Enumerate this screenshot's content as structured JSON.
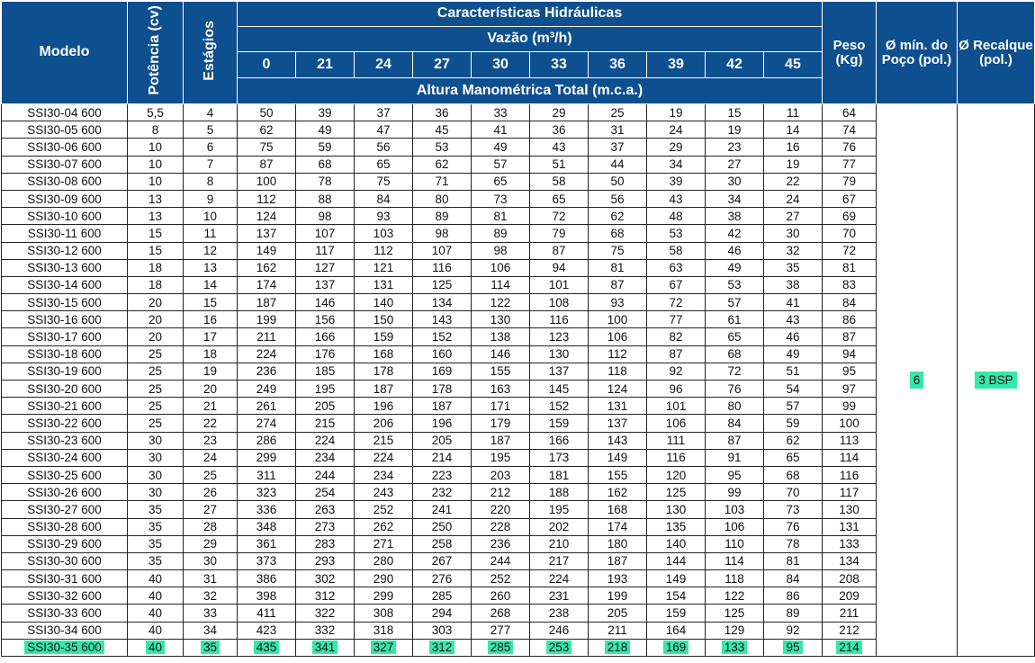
{
  "header": {
    "model": "Modelo",
    "power": "Potência (cv)",
    "stages": "Estágios",
    "hydraulic": "Características Hidráulicas",
    "flow": "Vazão (m³/h)",
    "head": "Altura Manométrica Total (m.c.a.)",
    "weight": "Peso (Kg)",
    "well": "Ø mín. do Poço (pol.)",
    "discharge": "Ø Recalque (pol.)",
    "flows": [
      "0",
      "21",
      "24",
      "27",
      "30",
      "33",
      "36",
      "39",
      "42",
      "45"
    ]
  },
  "merged": {
    "well_value": "6",
    "discharge_value": "3 BSP"
  },
  "colors": {
    "header_bg": "#0e4f8f",
    "highlight": "#35e8a8"
  },
  "rows": [
    [
      "SSI30-04 600",
      "5,5",
      "4",
      "50",
      "39",
      "37",
      "36",
      "33",
      "29",
      "25",
      "19",
      "15",
      "11",
      "64"
    ],
    [
      "SSI30-05 600",
      "8",
      "5",
      "62",
      "49",
      "47",
      "45",
      "41",
      "36",
      "31",
      "24",
      "19",
      "14",
      "74"
    ],
    [
      "SSI30-06 600",
      "10",
      "6",
      "75",
      "59",
      "56",
      "53",
      "49",
      "43",
      "37",
      "29",
      "23",
      "16",
      "76"
    ],
    [
      "SSI30-07 600",
      "10",
      "7",
      "87",
      "68",
      "65",
      "62",
      "57",
      "51",
      "44",
      "34",
      "27",
      "19",
      "77"
    ],
    [
      "SSI30-08 600",
      "10",
      "8",
      "100",
      "78",
      "75",
      "71",
      "65",
      "58",
      "50",
      "39",
      "30",
      "22",
      "79"
    ],
    [
      "SSI30-09 600",
      "13",
      "9",
      "112",
      "88",
      "84",
      "80",
      "73",
      "65",
      "56",
      "43",
      "34",
      "24",
      "67"
    ],
    [
      "SSI30-10 600",
      "13",
      "10",
      "124",
      "98",
      "93",
      "89",
      "81",
      "72",
      "62",
      "48",
      "38",
      "27",
      "69"
    ],
    [
      "SSI30-11 600",
      "15",
      "11",
      "137",
      "107",
      "103",
      "98",
      "89",
      "79",
      "68",
      "53",
      "42",
      "30",
      "70"
    ],
    [
      "SSI30-12 600",
      "15",
      "12",
      "149",
      "117",
      "112",
      "107",
      "98",
      "87",
      "75",
      "58",
      "46",
      "32",
      "72"
    ],
    [
      "SSI30-13 600",
      "18",
      "13",
      "162",
      "127",
      "121",
      "116",
      "106",
      "94",
      "81",
      "63",
      "49",
      "35",
      "81"
    ],
    [
      "SSI30-14 600",
      "18",
      "14",
      "174",
      "137",
      "131",
      "125",
      "114",
      "101",
      "87",
      "67",
      "53",
      "38",
      "83"
    ],
    [
      "SSI30-15 600",
      "20",
      "15",
      "187",
      "146",
      "140",
      "134",
      "122",
      "108",
      "93",
      "72",
      "57",
      "41",
      "84"
    ],
    [
      "SSI30-16 600",
      "20",
      "16",
      "199",
      "156",
      "150",
      "143",
      "130",
      "116",
      "100",
      "77",
      "61",
      "43",
      "86"
    ],
    [
      "SSI30-17 600",
      "20",
      "17",
      "211",
      "166",
      "159",
      "152",
      "138",
      "123",
      "106",
      "82",
      "65",
      "46",
      "87"
    ],
    [
      "SSI30-18 600",
      "25",
      "18",
      "224",
      "176",
      "168",
      "160",
      "146",
      "130",
      "112",
      "87",
      "68",
      "49",
      "94"
    ],
    [
      "SSI30-19 600",
      "25",
      "19",
      "236",
      "185",
      "178",
      "169",
      "155",
      "137",
      "118",
      "92",
      "72",
      "51",
      "95"
    ],
    [
      "SSI30-20 600",
      "25",
      "20",
      "249",
      "195",
      "187",
      "178",
      "163",
      "145",
      "124",
      "96",
      "76",
      "54",
      "97"
    ],
    [
      "SSI30-21 600",
      "25",
      "21",
      "261",
      "205",
      "196",
      "187",
      "171",
      "152",
      "131",
      "101",
      "80",
      "57",
      "99"
    ],
    [
      "SSI30-22 600",
      "25",
      "22",
      "274",
      "215",
      "206",
      "196",
      "179",
      "159",
      "137",
      "106",
      "84",
      "59",
      "100"
    ],
    [
      "SSI30-23 600",
      "30",
      "23",
      "286",
      "224",
      "215",
      "205",
      "187",
      "166",
      "143",
      "111",
      "87",
      "62",
      "113"
    ],
    [
      "SSI30-24 600",
      "30",
      "24",
      "299",
      "234",
      "224",
      "214",
      "195",
      "173",
      "149",
      "116",
      "91",
      "65",
      "114"
    ],
    [
      "SSI30-25 600",
      "30",
      "25",
      "311",
      "244",
      "234",
      "223",
      "203",
      "181",
      "155",
      "120",
      "95",
      "68",
      "116"
    ],
    [
      "SSI30-26 600",
      "30",
      "26",
      "323",
      "254",
      "243",
      "232",
      "212",
      "188",
      "162",
      "125",
      "99",
      "70",
      "117"
    ],
    [
      "SSI30-27 600",
      "35",
      "27",
      "336",
      "263",
      "252",
      "241",
      "220",
      "195",
      "168",
      "130",
      "103",
      "73",
      "130"
    ],
    [
      "SSI30-28 600",
      "35",
      "28",
      "348",
      "273",
      "262",
      "250",
      "228",
      "202",
      "174",
      "135",
      "106",
      "76",
      "131"
    ],
    [
      "SSI30-29 600",
      "35",
      "29",
      "361",
      "283",
      "271",
      "258",
      "236",
      "210",
      "180",
      "140",
      "110",
      "78",
      "133"
    ],
    [
      "SSI30-30 600",
      "35",
      "30",
      "373",
      "293",
      "280",
      "267",
      "244",
      "217",
      "187",
      "144",
      "114",
      "81",
      "134"
    ],
    [
      "SSI30-31 600",
      "40",
      "31",
      "386",
      "302",
      "290",
      "276",
      "252",
      "224",
      "193",
      "149",
      "118",
      "84",
      "208"
    ],
    [
      "SSI30-32 600",
      "40",
      "32",
      "398",
      "312",
      "299",
      "285",
      "260",
      "231",
      "199",
      "154",
      "122",
      "86",
      "209"
    ],
    [
      "SSI30-33 600",
      "40",
      "33",
      "411",
      "322",
      "308",
      "294",
      "268",
      "238",
      "205",
      "159",
      "125",
      "89",
      "211"
    ],
    [
      "SSI30-34 600",
      "40",
      "34",
      "423",
      "332",
      "318",
      "303",
      "277",
      "246",
      "211",
      "164",
      "129",
      "92",
      "212"
    ],
    [
      "SSI30-35 600",
      "40",
      "35",
      "435",
      "341",
      "327",
      "312",
      "285",
      "253",
      "218",
      "169",
      "133",
      "95",
      "214"
    ]
  ],
  "highlighted_row_index": 31
}
